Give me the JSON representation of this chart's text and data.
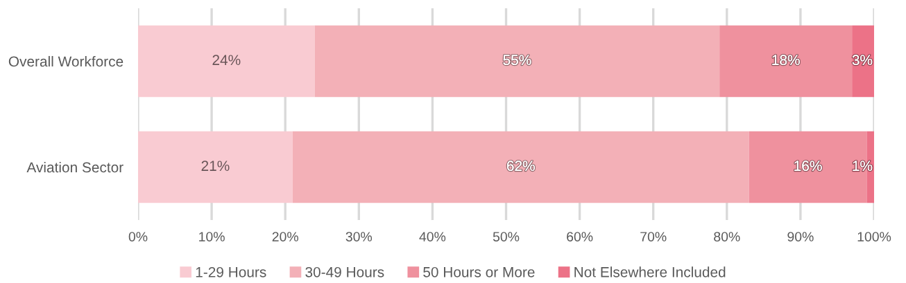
{
  "chart_data": {
    "type": "bar",
    "orientation": "horizontal",
    "stacked": true,
    "categories": [
      "Overall Workforce",
      "Aviation Sector"
    ],
    "series": [
      {
        "name": "1-29 Hours",
        "color": "#f9cbd2",
        "values": [
          24,
          21
        ],
        "value_labels": [
          "24%",
          "21%"
        ]
      },
      {
        "name": "30-49 Hours",
        "color": "#f3b0b7",
        "values": [
          55,
          62
        ],
        "value_labels": [
          "55%",
          "62%"
        ]
      },
      {
        "name": "50 Hours or More",
        "color": "#ef919e",
        "values": [
          18,
          16
        ],
        "value_labels": [
          "18%",
          "16%"
        ]
      },
      {
        "name": "Not Elsewhere Included",
        "color": "#ec7287",
        "values": [
          3,
          1
        ],
        "value_labels": [
          "3%",
          "1%"
        ]
      }
    ],
    "xlim": [
      0,
      100
    ],
    "xticks": [
      {
        "value": 0,
        "label": "0%"
      },
      {
        "value": 10,
        "label": "10%"
      },
      {
        "value": 20,
        "label": "20%"
      },
      {
        "value": 30,
        "label": "30%"
      },
      {
        "value": 40,
        "label": "40%"
      },
      {
        "value": 50,
        "label": "50%"
      },
      {
        "value": 60,
        "label": "60%"
      },
      {
        "value": 70,
        "label": "70%"
      },
      {
        "value": 80,
        "label": "80%"
      },
      {
        "value": 90,
        "label": "90%"
      },
      {
        "value": 100,
        "label": "100%"
      }
    ],
    "grid": "x",
    "legend": "bottom"
  }
}
